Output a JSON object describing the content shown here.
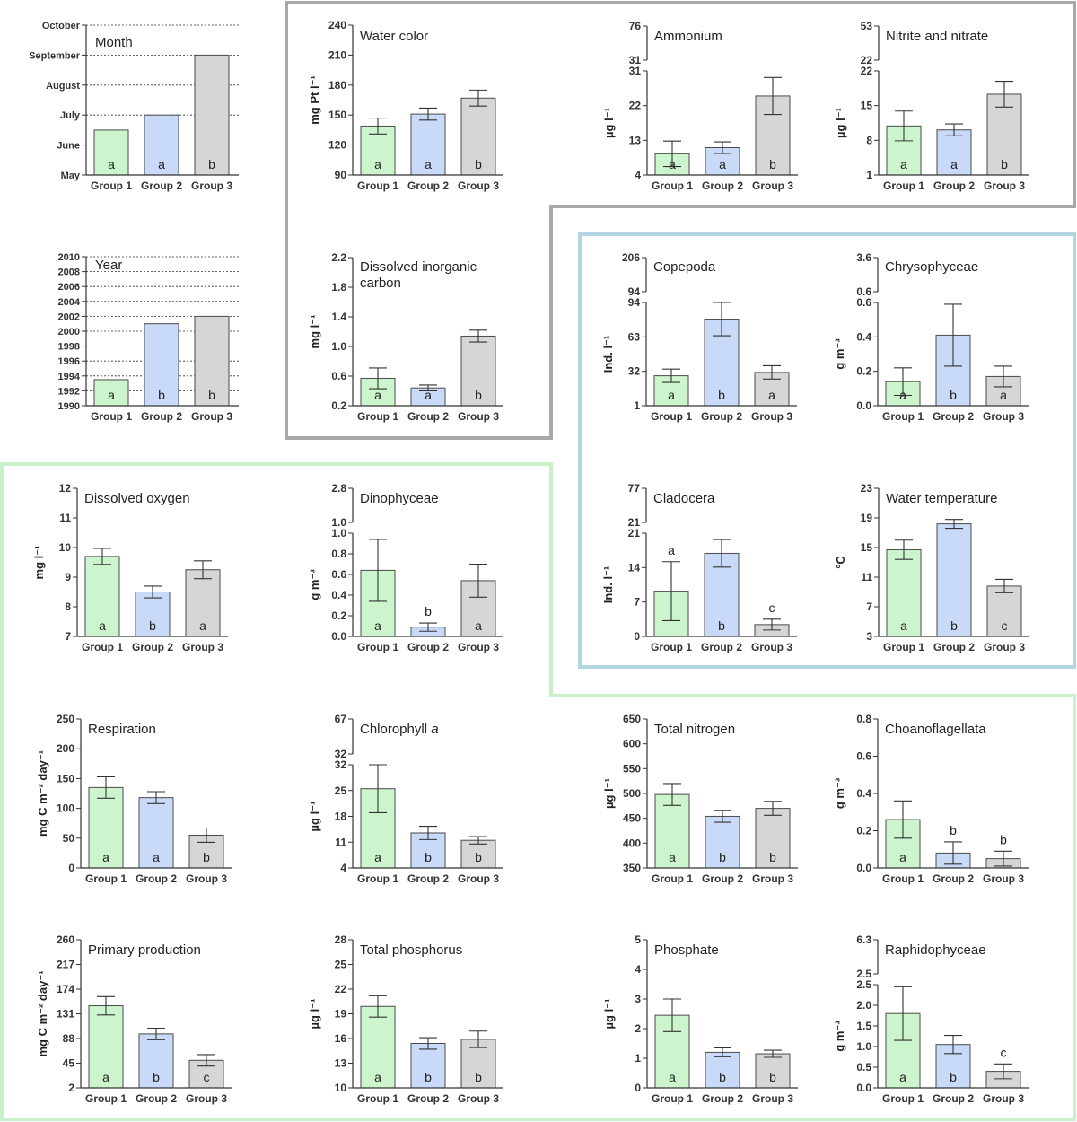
{
  "colors": {
    "group1": "#cdf5cd",
    "group2": "#c8daf7",
    "group3": "#d6d6d6",
    "frame_gray": "#a8a8a8",
    "frame_blue": "#b2d6e4",
    "frame_green": "#c9f1c9"
  },
  "groups": [
    "Group 1",
    "Group 2",
    "Group 3"
  ],
  "chart_data": [
    {
      "id": "month",
      "type": "bar",
      "title": "Month",
      "ylabel": "",
      "ylim": [
        0,
        5
      ],
      "ticks": [
        {
          "v": 0,
          "label": "May"
        },
        {
          "v": 1,
          "label": "June"
        },
        {
          "v": 2,
          "label": "July"
        },
        {
          "v": 3,
          "label": "August"
        },
        {
          "v": 4,
          "label": "September"
        },
        {
          "v": 5,
          "label": "October"
        }
      ],
      "values": [
        1.5,
        2.0,
        4.0
      ],
      "errors": null,
      "letters": [
        "a",
        "a",
        "b"
      ],
      "break": null,
      "grid": true
    },
    {
      "id": "year",
      "type": "bar",
      "title": "Year",
      "ylabel": "",
      "ylim": [
        1990,
        2010
      ],
      "ticks": [
        {
          "v": 1990,
          "label": "1990"
        },
        {
          "v": 1992,
          "label": "1992"
        },
        {
          "v": 1994,
          "label": "1994"
        },
        {
          "v": 1996,
          "label": "1996"
        },
        {
          "v": 1998,
          "label": "1998"
        },
        {
          "v": 2000,
          "label": "2000"
        },
        {
          "v": 2002,
          "label": "2002"
        },
        {
          "v": 2004,
          "label": "2004"
        },
        {
          "v": 2006,
          "label": "2006"
        },
        {
          "v": 2008,
          "label": "2008"
        },
        {
          "v": 2010,
          "label": "2010"
        }
      ],
      "values": [
        1993.5,
        2001,
        2002
      ],
      "errors": null,
      "letters": [
        "a",
        "b",
        "b"
      ],
      "break": null,
      "grid": true
    },
    {
      "id": "water_color",
      "type": "bar",
      "title": "Water color",
      "ylabel": "mg Pt l⁻¹",
      "ylim": [
        90,
        240
      ],
      "ticks": [
        {
          "v": 90,
          "label": "90"
        },
        {
          "v": 120,
          "label": "120"
        },
        {
          "v": 150,
          "label": "150"
        },
        {
          "v": 180,
          "label": "180"
        },
        {
          "v": 210,
          "label": "210"
        },
        {
          "v": 240,
          "label": "240"
        }
      ],
      "values": [
        139,
        151,
        167
      ],
      "errors": [
        8,
        6,
        8
      ],
      "letters": [
        "a",
        "a",
        "b"
      ],
      "break": null,
      "grid": false
    },
    {
      "id": "ammonium",
      "type": "bar",
      "title": "Ammonium",
      "ylabel": "µg l⁻¹",
      "ylim": [
        4,
        31
      ],
      "ticks": [
        {
          "v": 4,
          "label": "4"
        },
        {
          "v": 13,
          "label": "13"
        },
        {
          "v": 22,
          "label": "22"
        },
        {
          "v": 31,
          "label": "31"
        }
      ],
      "values": [
        9.5,
        11.1,
        24.5
      ],
      "errors": [
        3.3,
        1.5,
        4.8
      ],
      "letters": [
        "a",
        "a",
        "b"
      ],
      "break": {
        "upper_ticks": [
          {
            "v": 31,
            "label": "31"
          },
          {
            "v": 76,
            "label": "76"
          }
        ]
      },
      "grid": false
    },
    {
      "id": "nitrite_nitrate",
      "type": "bar",
      "title": "Nitrite and nitrate",
      "ylabel": "µg l⁻¹",
      "ylim": [
        1,
        22
      ],
      "ticks": [
        {
          "v": 1,
          "label": "1"
        },
        {
          "v": 8,
          "label": "8"
        },
        {
          "v": 15,
          "label": "15"
        },
        {
          "v": 22,
          "label": "22"
        }
      ],
      "values": [
        10.9,
        10.1,
        17.3
      ],
      "errors": [
        3.0,
        1.2,
        2.6
      ],
      "letters": [
        "a",
        "a",
        "b"
      ],
      "break": {
        "upper_ticks": [
          {
            "v": 22,
            "label": "22"
          },
          {
            "v": 53,
            "label": "53"
          }
        ]
      },
      "grid": false
    },
    {
      "id": "dic",
      "type": "bar",
      "title": "Dissolved inorganic carbon",
      "title_lines": [
        "Dissolved inorganic",
        "carbon"
      ],
      "ylabel": "mg l⁻¹",
      "ylim": [
        0.2,
        2.2
      ],
      "ticks": [
        {
          "v": 0.2,
          "label": "0.2"
        },
        {
          "v": 0.6,
          "label": "0.6"
        },
        {
          "v": 1.0,
          "label": "1.0"
        },
        {
          "v": 1.4,
          "label": "1.4"
        },
        {
          "v": 1.8,
          "label": "1.8"
        },
        {
          "v": 2.2,
          "label": "2.2"
        }
      ],
      "values": [
        0.57,
        0.44,
        1.14
      ],
      "errors": [
        0.14,
        0.04,
        0.08
      ],
      "letters": [
        "a",
        "a",
        "b"
      ],
      "break": null,
      "grid": false
    },
    {
      "id": "copepoda",
      "type": "bar",
      "title": "Copepoda",
      "ylabel": "Ind. l⁻¹",
      "ylim": [
        1,
        94
      ],
      "ticks": [
        {
          "v": 1,
          "label": "1"
        },
        {
          "v": 32,
          "label": "32"
        },
        {
          "v": 63,
          "label": "63"
        },
        {
          "v": 94,
          "label": "94"
        }
      ],
      "values": [
        28,
        79,
        31
      ],
      "errors": [
        6,
        15,
        6
      ],
      "letters": [
        "a",
        "b",
        "a"
      ],
      "break": {
        "upper_ticks": [
          {
            "v": 94,
            "label": "94"
          },
          {
            "v": 206,
            "label": "206"
          }
        ]
      },
      "grid": false
    },
    {
      "id": "chrysophyceae",
      "type": "bar",
      "title": "Chrysophyceae",
      "ylabel": "g m⁻³",
      "ylim": [
        0,
        0.6
      ],
      "ticks": [
        {
          "v": 0,
          "label": "0.0"
        },
        {
          "v": 0.2,
          "label": "0.2"
        },
        {
          "v": 0.4,
          "label": "0.4"
        },
        {
          "v": 0.6,
          "label": "0.6"
        }
      ],
      "values": [
        0.14,
        0.41,
        0.17
      ],
      "errors": [
        0.08,
        0.18,
        0.06
      ],
      "letters": [
        "a",
        "b",
        "a"
      ],
      "break": {
        "upper_ticks": [
          {
            "v": 0.6,
            "label": "0.6"
          },
          {
            "v": 3.6,
            "label": "3.6"
          }
        ]
      },
      "grid": false
    },
    {
      "id": "cladocera",
      "type": "bar",
      "title": "Cladocera",
      "ylabel": "Ind. l⁻¹",
      "ylim": [
        0,
        21
      ],
      "ticks": [
        {
          "v": 0,
          "label": "0"
        },
        {
          "v": 7,
          "label": "7"
        },
        {
          "v": 14,
          "label": "14"
        },
        {
          "v": 21,
          "label": "21"
        }
      ],
      "values": [
        9.2,
        16.9,
        2.4
      ],
      "errors": [
        6.0,
        2.8,
        1.1
      ],
      "letters": [
        "a",
        "b",
        "c"
      ],
      "letter_pos": [
        "top",
        "bottom",
        "top"
      ],
      "break": {
        "upper_ticks": [
          {
            "v": 21,
            "label": "21"
          },
          {
            "v": 77,
            "label": "77"
          }
        ]
      },
      "grid": false
    },
    {
      "id": "water_temperature",
      "type": "bar",
      "title": "Water temperature",
      "ylabel": "°C",
      "ylim": [
        3,
        23
      ],
      "ticks": [
        {
          "v": 3,
          "label": "3"
        },
        {
          "v": 7,
          "label": "7"
        },
        {
          "v": 11,
          "label": "11"
        },
        {
          "v": 15,
          "label": "15"
        },
        {
          "v": 19,
          "label": "19"
        },
        {
          "v": 23,
          "label": "23"
        }
      ],
      "values": [
        14.7,
        18.2,
        9.8
      ],
      "errors": [
        1.3,
        0.6,
        0.9
      ],
      "letters": [
        "a",
        "b",
        "c"
      ],
      "break": null,
      "grid": false
    },
    {
      "id": "dissolved_oxygen",
      "type": "bar",
      "title": "Dissolved oxygen",
      "ylabel": "mg l⁻¹",
      "ylim": [
        7,
        12
      ],
      "ticks": [
        {
          "v": 7,
          "label": "7"
        },
        {
          "v": 8,
          "label": "8"
        },
        {
          "v": 9,
          "label": "9"
        },
        {
          "v": 10,
          "label": "10"
        },
        {
          "v": 11,
          "label": "11"
        },
        {
          "v": 12,
          "label": "12"
        }
      ],
      "values": [
        9.7,
        8.5,
        9.25
      ],
      "errors": [
        0.27,
        0.2,
        0.3
      ],
      "letters": [
        "a",
        "b",
        "a"
      ],
      "break": null,
      "grid": false
    },
    {
      "id": "dinophyceae",
      "type": "bar",
      "title": "Dinophyceae",
      "ylabel": "g m⁻³",
      "ylim": [
        0,
        1.0
      ],
      "ticks": [
        {
          "v": 0,
          "label": "0.0"
        },
        {
          "v": 0.2,
          "label": "0.2"
        },
        {
          "v": 0.4,
          "label": "0.4"
        },
        {
          "v": 0.6,
          "label": "0.6"
        },
        {
          "v": 0.8,
          "label": "0.8"
        },
        {
          "v": 1.0,
          "label": "1.0"
        }
      ],
      "values": [
        0.64,
        0.09,
        0.54
      ],
      "errors": [
        0.3,
        0.04,
        0.16
      ],
      "letters": [
        "a",
        "b",
        "a"
      ],
      "letter_pos": [
        "bottom",
        "top",
        "bottom"
      ],
      "break": {
        "upper_ticks": [
          {
            "v": 1.0,
            "label": "1.0"
          },
          {
            "v": 2.8,
            "label": "2.8"
          }
        ]
      },
      "grid": false
    },
    {
      "id": "respiration",
      "type": "bar",
      "title": "Respiration",
      "ylabel": "mg C m⁻² day⁻¹",
      "ylim": [
        0,
        250
      ],
      "ticks": [
        {
          "v": 0,
          "label": "0"
        },
        {
          "v": 50,
          "label": "50"
        },
        {
          "v": 100,
          "label": "100"
        },
        {
          "v": 150,
          "label": "150"
        },
        {
          "v": 200,
          "label": "200"
        },
        {
          "v": 250,
          "label": "250"
        }
      ],
      "values": [
        135,
        118,
        55
      ],
      "errors": [
        18,
        10,
        12
      ],
      "letters": [
        "a",
        "a",
        "b"
      ],
      "break": null,
      "grid": false
    },
    {
      "id": "chlorophyll_a",
      "type": "bar",
      "title": "Chlorophyll a",
      "title_italic_suffix": "a",
      "ylabel": "µg l⁻¹",
      "ylim": [
        4,
        32
      ],
      "ticks": [
        {
          "v": 4,
          "label": "4"
        },
        {
          "v": 11,
          "label": "11"
        },
        {
          "v": 18,
          "label": "18"
        },
        {
          "v": 25,
          "label": "25"
        },
        {
          "v": 32,
          "label": "32"
        }
      ],
      "values": [
        25.5,
        13.5,
        11.5
      ],
      "errors": [
        6.5,
        1.8,
        1.0
      ],
      "letters": [
        "a",
        "b",
        "b"
      ],
      "break": {
        "upper_ticks": [
          {
            "v": 32,
            "label": "32"
          },
          {
            "v": 67,
            "label": "67"
          }
        ]
      },
      "grid": false
    },
    {
      "id": "total_nitrogen",
      "type": "bar",
      "title": "Total nitrogen",
      "ylabel": "µg l⁻¹",
      "ylim": [
        350,
        650
      ],
      "ticks": [
        {
          "v": 350,
          "label": "350"
        },
        {
          "v": 400,
          "label": "400"
        },
        {
          "v": 450,
          "label": "450"
        },
        {
          "v": 500,
          "label": "500"
        },
        {
          "v": 550,
          "label": "550"
        },
        {
          "v": 600,
          "label": "600"
        },
        {
          "v": 650,
          "label": "650"
        }
      ],
      "values": [
        498,
        454,
        470
      ],
      "errors": [
        22,
        12,
        14
      ],
      "letters": [
        "a",
        "b",
        "b"
      ],
      "break": null,
      "grid": false
    },
    {
      "id": "choanoflagellata",
      "type": "bar",
      "title": "Choanoflagellata",
      "ylabel": "g m⁻³",
      "ylim": [
        0,
        0.8
      ],
      "ticks": [
        {
          "v": 0,
          "label": "0.0"
        },
        {
          "v": 0.2,
          "label": "0.2"
        },
        {
          "v": 0.4,
          "label": "0.4"
        },
        {
          "v": 0.6,
          "label": "0.6"
        },
        {
          "v": 0.8,
          "label": "0.8"
        }
      ],
      "values": [
        0.26,
        0.08,
        0.05
      ],
      "errors": [
        0.1,
        0.06,
        0.04
      ],
      "letters": [
        "a",
        "b",
        "b"
      ],
      "letter_pos": [
        "bottom",
        "top",
        "top"
      ],
      "break": null,
      "grid": false
    },
    {
      "id": "primary_production",
      "type": "bar",
      "title": "Primary production",
      "ylabel": "mg C m⁻² day⁻¹",
      "ylim": [
        2,
        260
      ],
      "ticks": [
        {
          "v": 2,
          "label": "2"
        },
        {
          "v": 45,
          "label": "45"
        },
        {
          "v": 88,
          "label": "88"
        },
        {
          "v": 131,
          "label": "131"
        },
        {
          "v": 174,
          "label": "174"
        },
        {
          "v": 217,
          "label": "217"
        },
        {
          "v": 260,
          "label": "260"
        }
      ],
      "values": [
        145,
        96,
        50
      ],
      "errors": [
        16,
        10,
        10
      ],
      "letters": [
        "a",
        "b",
        "c"
      ],
      "break": null,
      "grid": false
    },
    {
      "id": "total_phosphorus",
      "type": "bar",
      "title": "Total phosphorus",
      "ylabel": "µg l⁻¹",
      "ylim": [
        10,
        28
      ],
      "ticks": [
        {
          "v": 10,
          "label": "10"
        },
        {
          "v": 13,
          "label": "13"
        },
        {
          "v": 16,
          "label": "16"
        },
        {
          "v": 19,
          "label": "19"
        },
        {
          "v": 22,
          "label": "22"
        },
        {
          "v": 25,
          "label": "25"
        },
        {
          "v": 28,
          "label": "28"
        }
      ],
      "values": [
        19.9,
        15.4,
        15.9
      ],
      "errors": [
        1.3,
        0.7,
        1.0
      ],
      "letters": [
        "a",
        "b",
        "b"
      ],
      "break": null,
      "grid": false
    },
    {
      "id": "phosphate",
      "type": "bar",
      "title": "Phosphate",
      "ylabel": "µg l⁻¹",
      "ylim": [
        0,
        5
      ],
      "ticks": [
        {
          "v": 0,
          "label": "0"
        },
        {
          "v": 1,
          "label": "1"
        },
        {
          "v": 2,
          "label": "2"
        },
        {
          "v": 3,
          "label": "3"
        },
        {
          "v": 4,
          "label": "4"
        },
        {
          "v": 5,
          "label": "5"
        }
      ],
      "values": [
        2.45,
        1.2,
        1.15
      ],
      "errors": [
        0.55,
        0.15,
        0.12
      ],
      "letters": [
        "a",
        "b",
        "b"
      ],
      "break": null,
      "grid": false
    },
    {
      "id": "raphidophyceae",
      "type": "bar",
      "title": "Raphidophyceae",
      "ylabel": "g m⁻³",
      "ylim": [
        0,
        2.5
      ],
      "ticks": [
        {
          "v": 0,
          "label": "0.0"
        },
        {
          "v": 0.5,
          "label": "0.5"
        },
        {
          "v": 1.0,
          "label": "1.0"
        },
        {
          "v": 1.5,
          "label": "1.5"
        },
        {
          "v": 2.0,
          "label": "2.0"
        },
        {
          "v": 2.5,
          "label": "2.5"
        }
      ],
      "values": [
        1.8,
        1.05,
        0.4
      ],
      "errors": [
        0.65,
        0.22,
        0.18
      ],
      "letters": [
        "a",
        "b",
        "c"
      ],
      "letter_pos": [
        "bottom",
        "bottom",
        "top"
      ],
      "break": {
        "upper_ticks": [
          {
            "v": 2.5,
            "label": "2.5"
          },
          {
            "v": 6.3,
            "label": "6.3"
          }
        ]
      },
      "grid": false
    }
  ]
}
